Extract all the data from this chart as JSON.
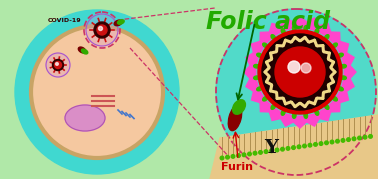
{
  "bg_color": "#b0e8a8",
  "cell_cyan_color": "#40d8d0",
  "cell_inner_color": "#f5c8a0",
  "cell_border_color": "#c8a465",
  "nucleus_color": "#d888cc",
  "title_text": "Folic acid",
  "title_color": "#22aa00",
  "furin_label": "Furin",
  "furin_label_color": "#cc0000",
  "covid_label": "COVID-19",
  "covid_label_color": "#330000",
  "virus_core_color": "#cc0000",
  "virus_dark_ring": "#111111",
  "virus_red_ring": "#dd0000",
  "virus_spike_color": "#ff44cc",
  "virus_wavy_color": "#f0d888",
  "folic_dark": "#880000",
  "folic_green": "#33aa00",
  "receptor_Y_color": "#111111",
  "membrane_fill": "#e8c888",
  "membrane_line_color": "#b09050",
  "small_green_color": "#44bb00",
  "dashed_color": "#cc3366",
  "zoom_ellipse_color": "#cc3366",
  "ribosome_color": "#cc5555",
  "enzyme_color": "#4477cc"
}
